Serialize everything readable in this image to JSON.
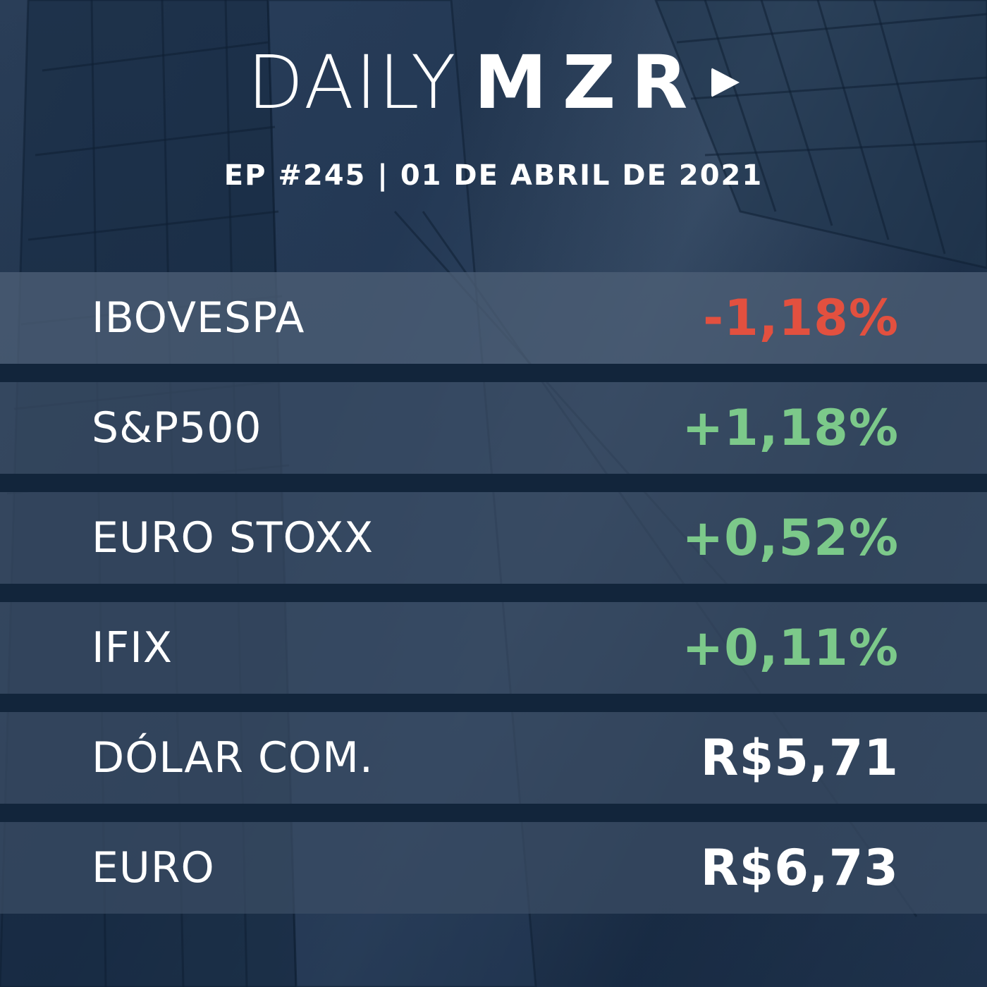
{
  "brand": {
    "light": "DAILY",
    "bold": "MZR",
    "play_icon": "play-triangle-icon"
  },
  "episode": "EP #245 | 01 DE ABRIL DE 2021",
  "colors": {
    "negative": "#e2503f",
    "positive": "#7cc98a",
    "neutral": "#ffffff"
  },
  "rows": [
    {
      "label": "IBOVESPA",
      "value": "-1,18%",
      "trend": "negative"
    },
    {
      "label": "S&P500",
      "value": "+1,18%",
      "trend": "positive"
    },
    {
      "label": "EURO STOXX",
      "value": "+0,52%",
      "trend": "positive"
    },
    {
      "label": "IFIX",
      "value": "+0,11%",
      "trend": "positive"
    },
    {
      "label": "DÓLAR COM.",
      "value": "R$5,71",
      "trend": "neutral"
    },
    {
      "label": "EURO",
      "value": "R$6,73",
      "trend": "neutral"
    }
  ]
}
